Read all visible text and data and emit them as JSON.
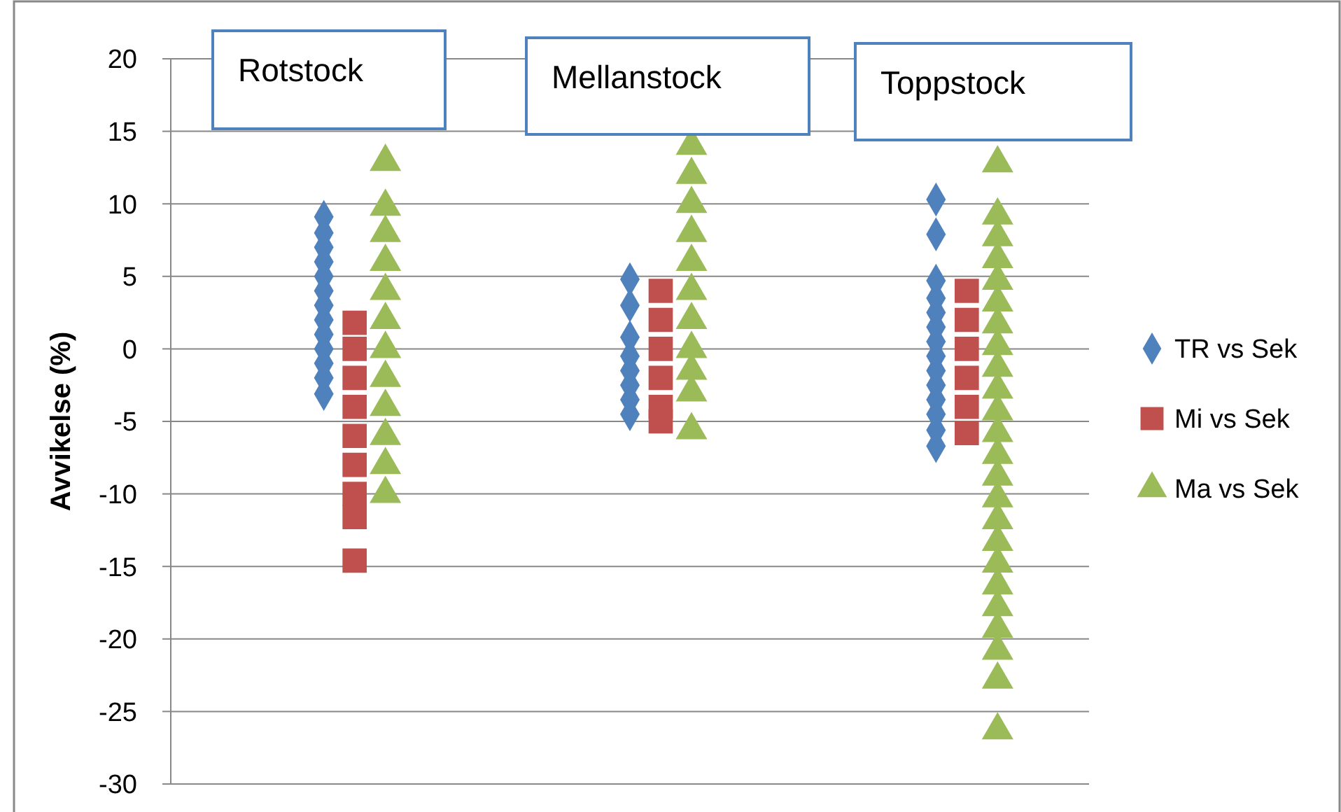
{
  "chart_data": {
    "type": "scatter",
    "ylabel": "Avvikelse (%)",
    "annotations": [
      "Rotstock",
      "Mellanstock",
      "Toppstock"
    ],
    "categories": [
      null,
      null,
      null
    ],
    "ylim": [
      -30,
      20
    ],
    "yticks": [
      -30,
      -25,
      -20,
      -15,
      -10,
      -5,
      0,
      5,
      10,
      15,
      20
    ],
    "grid": "y",
    "legend": "right",
    "tick_labels": "y",
    "series": [
      {
        "name": "TR vs Sek",
        "color": "#4f81bd",
        "marker": "diamond",
        "values": [
          9.1,
          4.8,
          10.3
        ]
      },
      {
        "color": "#4f81bd",
        "marker": "diamond",
        "values": [
          8,
          3,
          7.9
        ]
      },
      {
        "color": "#4f81bd",
        "marker": "diamond",
        "values": [
          7,
          0.8,
          4.7
        ]
      },
      {
        "color": "#4f81bd",
        "marker": "diamond",
        "values": [
          6,
          -0.5,
          3.5
        ]
      },
      {
        "color": "#4f81bd",
        "marker": "diamond",
        "values": [
          5,
          -1.5,
          2.5
        ]
      },
      {
        "color": "#4f81bd",
        "marker": "diamond",
        "values": [
          4,
          -2.5,
          1.5
        ]
      },
      {
        "color": "#4f81bd",
        "marker": "diamond",
        "values": [
          3,
          -3.5,
          0.5
        ]
      },
      {
        "color": "#4f81bd",
        "marker": "diamond",
        "values": [
          2,
          -4.5,
          -0.5
        ]
      },
      {
        "color": "#4f81bd",
        "marker": "diamond",
        "values": [
          1,
          null,
          -1.5
        ]
      },
      {
        "color": "#4f81bd",
        "marker": "diamond",
        "values": [
          0,
          null,
          -2.5
        ]
      },
      {
        "color": "#4f81bd",
        "marker": "diamond",
        "values": [
          -1,
          null,
          -3.5
        ]
      },
      {
        "color": "#4f81bd",
        "marker": "diamond",
        "values": [
          -2,
          null,
          -4.5
        ]
      },
      {
        "color": "#4f81bd",
        "marker": "diamond",
        "values": [
          -3.1,
          null,
          -5.6
        ]
      },
      {
        "color": "#4f81bd",
        "marker": "diamond",
        "values": [
          null,
          null,
          -6.7
        ]
      },
      {
        "name": "Mi vs Sek",
        "color": "#c0504d",
        "marker": "square",
        "values": [
          1.8,
          4,
          4
        ]
      },
      {
        "color": "#c0504d",
        "marker": "square",
        "values": [
          0,
          2,
          2
        ]
      },
      {
        "color": "#c0504d",
        "marker": "square",
        "values": [
          -2,
          0,
          0
        ]
      },
      {
        "color": "#c0504d",
        "marker": "square",
        "values": [
          -4,
          -2,
          -2
        ]
      },
      {
        "color": "#c0504d",
        "marker": "square",
        "values": [
          -6,
          -4,
          -4
        ]
      },
      {
        "color": "#c0504d",
        "marker": "square",
        "values": [
          -8,
          -5,
          -5.8
        ]
      },
      {
        "color": "#c0504d",
        "marker": "square",
        "values": [
          -10,
          null,
          null
        ]
      },
      {
        "color": "#c0504d",
        "marker": "square",
        "values": [
          -11.6,
          null,
          null
        ]
      },
      {
        "color": "#c0504d",
        "marker": "square",
        "values": [
          -14.6,
          null,
          null
        ]
      },
      {
        "name": "Ma vs Sek",
        "color": "#9bbb59",
        "marker": "triangle",
        "values": [
          12.9,
          14,
          12.8
        ]
      },
      {
        "color": "#9bbb59",
        "marker": "triangle",
        "values": [
          9.8,
          12,
          9.2
        ]
      },
      {
        "color": "#9bbb59",
        "marker": "triangle",
        "values": [
          8,
          10,
          7.7
        ]
      },
      {
        "color": "#9bbb59",
        "marker": "triangle",
        "values": [
          6,
          8,
          6.2
        ]
      },
      {
        "color": "#9bbb59",
        "marker": "triangle",
        "values": [
          4,
          6,
          4.7
        ]
      },
      {
        "color": "#9bbb59",
        "marker": "triangle",
        "values": [
          2,
          4,
          3.2
        ]
      },
      {
        "color": "#9bbb59",
        "marker": "triangle",
        "values": [
          0,
          2,
          1.7
        ]
      },
      {
        "color": "#9bbb59",
        "marker": "triangle",
        "values": [
          -2,
          0,
          0.2
        ]
      },
      {
        "color": "#9bbb59",
        "marker": "triangle",
        "values": [
          -4,
          -1.5,
          -1.3
        ]
      },
      {
        "color": "#9bbb59",
        "marker": "triangle",
        "values": [
          -6,
          -3,
          -2.8
        ]
      },
      {
        "color": "#9bbb59",
        "marker": "triangle",
        "values": [
          -8,
          -5.6,
          -4.3
        ]
      },
      {
        "color": "#9bbb59",
        "marker": "triangle",
        "values": [
          -10,
          null,
          -5.8
        ]
      },
      {
        "color": "#9bbb59",
        "marker": "triangle",
        "values": [
          null,
          null,
          -7.3
        ]
      },
      {
        "color": "#9bbb59",
        "marker": "triangle",
        "values": [
          null,
          null,
          -8.8
        ]
      },
      {
        "color": "#9bbb59",
        "marker": "triangle",
        "values": [
          null,
          null,
          -10.3
        ]
      },
      {
        "color": "#9bbb59",
        "marker": "triangle",
        "values": [
          null,
          null,
          -11.8
        ]
      },
      {
        "color": "#9bbb59",
        "marker": "triangle",
        "values": [
          null,
          null,
          -13.3
        ]
      },
      {
        "color": "#9bbb59",
        "marker": "triangle",
        "values": [
          null,
          null,
          -14.8
        ]
      },
      {
        "color": "#9bbb59",
        "marker": "triangle",
        "values": [
          null,
          null,
          -16.3
        ]
      },
      {
        "color": "#9bbb59",
        "marker": "triangle",
        "values": [
          null,
          null,
          -17.8
        ]
      },
      {
        "color": "#9bbb59",
        "marker": "triangle",
        "values": [
          null,
          null,
          -19.3
        ]
      },
      {
        "color": "#9bbb59",
        "marker": "triangle",
        "values": [
          null,
          null,
          -20.8
        ]
      },
      {
        "color": "#9bbb59",
        "marker": "triangle",
        "values": [
          null,
          null,
          -22.8
        ]
      },
      {
        "color": "#9bbb59",
        "marker": "triangle",
        "values": [
          null,
          null,
          -26.3
        ]
      }
    ]
  }
}
